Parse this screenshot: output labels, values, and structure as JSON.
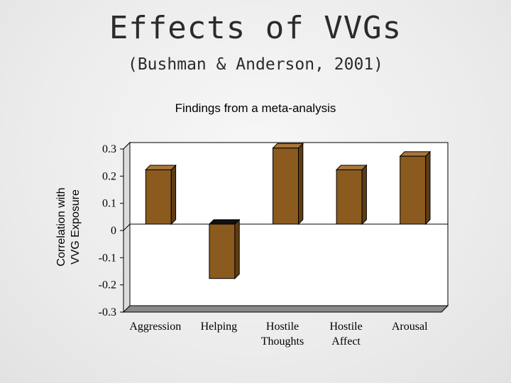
{
  "slide": {
    "title": "Effects of VVGs",
    "subtitle": "(Bushman & Anderson, 2001)",
    "caption": "Findings from a meta-analysis"
  },
  "chart_data": {
    "type": "bar",
    "title": "",
    "xlabel": "",
    "ylabel_lines": [
      "Correlation with",
      "VVG Exposure"
    ],
    "categories": [
      [
        "Aggression"
      ],
      [
        "Helping"
      ],
      [
        "Hostile",
        "Thoughts"
      ],
      [
        "Hostile",
        "Affect"
      ],
      [
        "Arousal"
      ]
    ],
    "values": [
      0.2,
      -0.2,
      0.28,
      0.2,
      0.25
    ],
    "ylim": [
      -0.3,
      0.3
    ],
    "yticks": [
      0.3,
      0.2,
      0.1,
      0,
      -0.1,
      -0.2,
      -0.3
    ],
    "ytick_labels": [
      "0.3",
      "0.2",
      "0.1",
      "0",
      "-0.1",
      "-0.2",
      "-0.3"
    ],
    "grid": false,
    "legend": "none",
    "colors": {
      "bar_front": "#8b5a1e",
      "bar_side": "#5e3c13",
      "bar_top": "#a8773a",
      "plot_bg": "#ffffff",
      "plot_wall": "#c8c8c8"
    }
  }
}
